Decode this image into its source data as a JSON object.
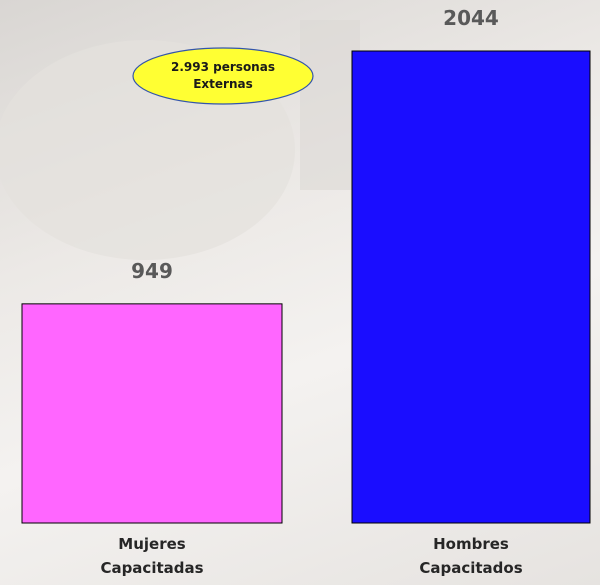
{
  "chart_data": {
    "type": "bar",
    "categories": [
      "Mujeres Capacitadas",
      "Hombres Capacitados"
    ],
    "values": [
      949,
      2044
    ],
    "colors": [
      "#ff66ff",
      "#1a0dff"
    ],
    "annotation": "2.993 personas Externas"
  }
}
